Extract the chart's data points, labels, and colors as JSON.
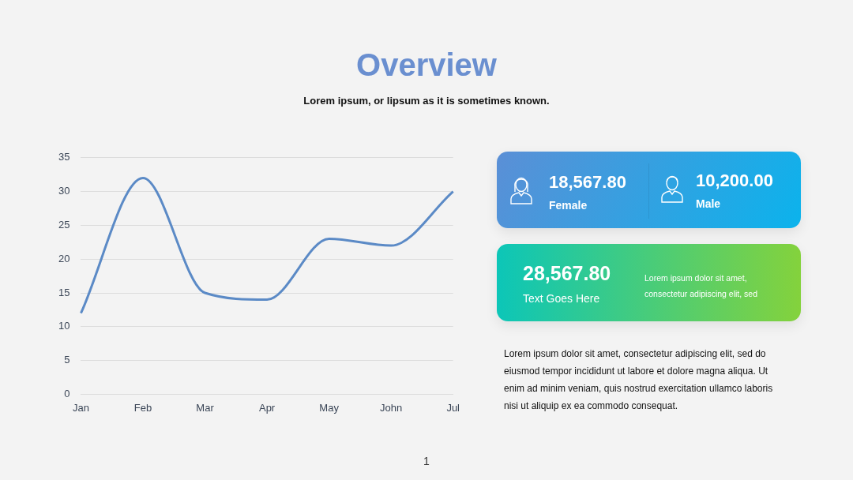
{
  "chart_data": [
    {
      "type": "line",
      "title": "Overview",
      "subtitle": "Lorem ipsum, or lipsum as it is sometimes known.",
      "categories": [
        "Jan",
        "Feb",
        "Mar",
        "Apr",
        "May",
        "John",
        "Jul"
      ],
      "series": [
        {
          "color": "#5b8ac6",
          "values": [
            12,
            32,
            15,
            14,
            23,
            22,
            30
          ]
        }
      ],
      "ylim": [
        0,
        35
      ],
      "yticks": [
        0,
        5,
        10,
        15,
        20,
        25,
        30,
        35
      ],
      "grid": "y",
      "marker": "none",
      "line_style": "solid",
      "annotations": [
        "1"
      ]
    },
    {
      "type": "other",
      "annotations": [
        "18,567.80",
        "Female",
        "10,200.00",
        "Male",
        "28,567.80",
        "Text Goes Here",
        "Lorem ipsum dolor sit amet, consectetur adipiscing elit, sed",
        "Lorem ipsum dolor sit amet, consectetur adipiscing elit, sed do eiusmod tempor incididunt ut labore et dolore magna aliqua. Ut enim ad minim veniam, quis nostrud exercitation ullamco laboris nisi ut aliquip ex ea commodo consequat."
      ]
    }
  ]
}
